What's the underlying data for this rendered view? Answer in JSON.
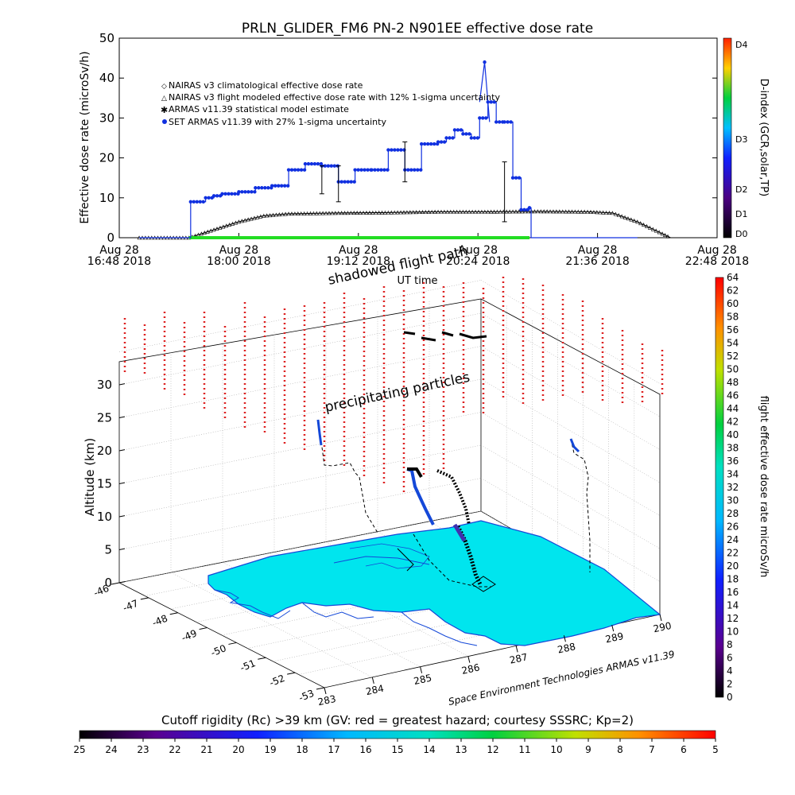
{
  "title": "PRLN_GLIDER_FM6 PN-2 N901EE effective dose rate",
  "top_chart": {
    "ylabel": "Effective dose rate (microSv/h)",
    "xlabel": "UT time",
    "y_ticks": [
      "0",
      "10",
      "20",
      "30",
      "40",
      "50"
    ],
    "x_ticks": [
      {
        "top": "Aug 28",
        "bottom": "16:48 2018"
      },
      {
        "top": "Aug 28",
        "bottom": "18:00 2018"
      },
      {
        "top": "Aug 28",
        "bottom": "19:12 2018"
      },
      {
        "top": "Aug 28",
        "bottom": "20:24 2018"
      },
      {
        "top": "Aug 28",
        "bottom": "21:36 2018"
      },
      {
        "top": "Aug 28",
        "bottom": "22:48 2018"
      }
    ],
    "legend": [
      "NAIRAS v3 climatological effective dose rate",
      "NAIRAS v3 flight modeled effective dose rate with 12% 1-sigma uncertainty",
      "ARMAS v11.39 statistical model estimate",
      "SET ARMAS v11.39 with 27% 1-sigma uncertainty"
    ],
    "dindex_label": "D-index (GCR,solar,TP)",
    "dindex_ticks": [
      "D0",
      "D1",
      "D2",
      "D3",
      "D4"
    ]
  },
  "chart_data": [
    {
      "type": "line",
      "title": "PRLN_GLIDER_FM6 PN-2 N901EE effective dose rate",
      "xlabel": "UT time",
      "ylabel": "Effective dose rate (microSv/h)",
      "ylim": [
        0,
        50
      ],
      "xlim": [
        "16:48",
        "22:48"
      ],
      "series": [
        {
          "name": "NAIRAS v3 flight modeled effective dose rate with 12% 1-sigma uncertainty",
          "x": [
            "17:00",
            "17:30",
            "17:45",
            "18:00",
            "18:15",
            "18:30",
            "19:00",
            "19:30",
            "20:00",
            "20:30",
            "21:00",
            "21:30",
            "21:45",
            "22:00",
            "22:15",
            "22:20"
          ],
          "y": [
            0,
            0,
            2,
            4,
            5.5,
            6,
            6.2,
            6.3,
            6.5,
            6.5,
            6.6,
            6.5,
            6.2,
            4,
            1,
            0
          ]
        },
        {
          "name": "ARMAS v11.39 statistical model estimate",
          "x": [
            "17:30",
            "20:55"
          ],
          "y": [
            0,
            0
          ]
        },
        {
          "name": "SET ARMAS v11.39 with 27% 1-sigma uncertainty",
          "x": [
            "17:00",
            "17:30",
            "17:31",
            "17:40",
            "17:45",
            "17:50",
            "18:00",
            "18:10",
            "18:20",
            "18:30",
            "18:40",
            "18:50",
            "19:00",
            "19:10",
            "19:20",
            "19:30",
            "19:40",
            "19:50",
            "20:00",
            "20:05",
            "20:10",
            "20:15",
            "20:20",
            "20:25",
            "20:30",
            "20:35",
            "20:40",
            "20:45",
            "20:50",
            "20:55",
            "20:56",
            "21:30",
            "22:00"
          ],
          "y": [
            0,
            0,
            9,
            10,
            10.5,
            11,
            11.5,
            12.5,
            13,
            17,
            18.5,
            18,
            14,
            17,
            17,
            22,
            17,
            23.5,
            24,
            25,
            27,
            26,
            25,
            30,
            34,
            29,
            29,
            15,
            7,
            7.5,
            0,
            0,
            0
          ]
        }
      ]
    },
    {
      "type": "scatter",
      "title": "",
      "zlabel": "Altitude (km)",
      "z_ticks": [
        "0",
        "5",
        "10",
        "15",
        "20",
        "25",
        "30"
      ],
      "lat_ticks": [
        "-46",
        "-47",
        "-48",
        "-49",
        "-50",
        "-51",
        "-52",
        "-53"
      ],
      "lon_ticks": [
        "283",
        "284",
        "285",
        "286",
        "287",
        "288",
        "289",
        "290"
      ],
      "annotations": [
        "shadowed flight path",
        "precipitating particles"
      ],
      "credit": "Space Environment Technologies ARMAS v11.39",
      "colorbar_label": "flight effective dose rate microSv/h",
      "colorbar_ticks": [
        "0",
        "2",
        "4",
        "6",
        "8",
        "10",
        "12",
        "14",
        "16",
        "18",
        "20",
        "22",
        "24",
        "26",
        "28",
        "30",
        "32",
        "34",
        "36",
        "38",
        "40",
        "42",
        "44",
        "46",
        "48",
        "50",
        "52",
        "54",
        "56",
        "58",
        "60",
        "62",
        "64"
      ],
      "bottom_colorbar_label": "Cutoff rigidity (Rc) >39 km (GV: red = greatest hazard; courtesy SSSRC; Kp=2)",
      "bottom_colorbar_ticks": [
        "25",
        "24",
        "23",
        "22",
        "21",
        "20",
        "19",
        "18",
        "17",
        "16",
        "15",
        "14",
        "13",
        "12",
        "11",
        "10",
        "9",
        "8",
        "7",
        "6",
        "5"
      ]
    }
  ],
  "colors": {
    "dose_blue": "#1030e0",
    "model_green": "#22dd22",
    "model_black": "#000000",
    "map_cyan": "#00e5ee",
    "coast_blue": "#1448d8",
    "rigidity_red": "#dd2020"
  }
}
